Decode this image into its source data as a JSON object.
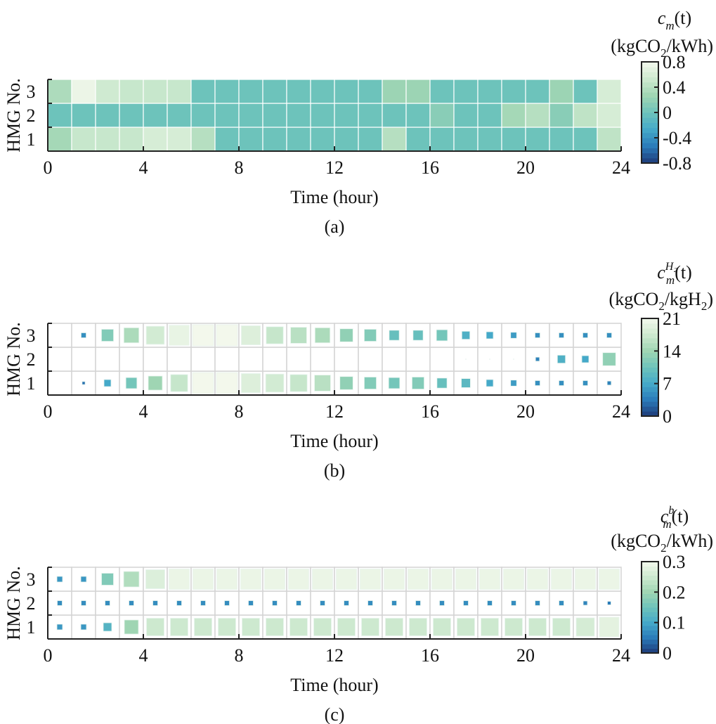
{
  "colormap": [
    "#1e3a78",
    "#2b7bb9",
    "#45a9c9",
    "#6dc3bb",
    "#9fd5b3",
    "#cde9cf",
    "#f3f8ec"
  ],
  "chart_data": [
    {
      "type": "heatmap",
      "panel_label": "(a)",
      "xlabel": "Time (hour)",
      "ylabel": "HMG No.",
      "xlim": [
        0,
        24
      ],
      "xticks": [
        "0",
        "4",
        "8",
        "12",
        "16",
        "20",
        "24"
      ],
      "yticks": [
        "1",
        "2",
        "3"
      ],
      "colorbar": {
        "title": {
          "base": "c",
          "sup": "",
          "sub": "m",
          "arg": "(t)"
        },
        "unit": {
          "pre": "(kgCO",
          "sub": "2",
          "post": "/kWh)"
        },
        "range": [
          -0.8,
          0.8
        ],
        "ticks": [
          "0.8",
          "0.4",
          "0",
          "-0.4",
          "-0.8"
        ]
      },
      "marker": "full-cell",
      "series": [
        {
          "name": "1",
          "values": [
            0.3,
            0.5,
            0.5,
            0.5,
            0.6,
            0.6,
            0.4,
            0,
            0,
            0,
            0,
            0,
            0,
            0,
            0.4,
            0,
            0,
            0,
            0,
            0,
            0,
            0,
            0,
            0.45
          ]
        },
        {
          "name": "2",
          "values": [
            0,
            0,
            0,
            0,
            0,
            0,
            0,
            0,
            0,
            0,
            0,
            0,
            0,
            0,
            0,
            0,
            0.15,
            0,
            0,
            0.3,
            0.4,
            0.15,
            0.45,
            0.6
          ]
        },
        {
          "name": "3",
          "values": [
            0.35,
            0.75,
            0.55,
            0.5,
            0.5,
            0.5,
            0,
            0,
            0,
            0,
            0,
            0,
            0,
            0,
            0.25,
            0.25,
            0,
            0,
            0,
            0,
            0,
            0.25,
            0,
            0.6
          ]
        }
      ]
    },
    {
      "type": "heatmap",
      "panel_label": "(b)",
      "xlabel": "Time (hour)",
      "ylabel": "HMG No.",
      "xlim": [
        0,
        24
      ],
      "xticks": [
        "0",
        "4",
        "8",
        "12",
        "16",
        "20",
        "24"
      ],
      "yticks": [
        "1",
        "2",
        "3"
      ],
      "colorbar": {
        "title": {
          "base": "c",
          "sup": "H₂",
          "sub": "m",
          "arg": "(t)"
        },
        "unit": {
          "pre": "(kgCO",
          "sub": "2",
          "post": "/kgH",
          "sub2": "2",
          "post2": ")"
        },
        "range": [
          0,
          21
        ],
        "ticks": [
          "21",
          "14",
          "7",
          "0"
        ]
      },
      "marker": "sized-square",
      "series": [
        {
          "name": "1",
          "values": [
            0,
            3,
            7,
            11,
            14,
            17,
            21,
            21,
            19,
            18,
            17,
            16,
            13,
            12,
            11,
            12,
            10,
            9,
            7,
            6,
            5,
            5,
            5,
            4
          ]
        },
        {
          "name": "2",
          "values": [
            0,
            0,
            0,
            0,
            0,
            0,
            0,
            0,
            0,
            0,
            0,
            0,
            0,
            0,
            0,
            0,
            0,
            0.5,
            0.5,
            0.5,
            4,
            8,
            7,
            13
          ]
        },
        {
          "name": "3",
          "values": [
            0,
            5,
            12,
            15,
            18,
            20,
            21,
            21,
            19,
            17,
            16,
            15,
            13,
            12,
            10,
            10,
            11,
            8,
            7,
            6,
            5,
            5,
            5,
            5
          ]
        }
      ]
    },
    {
      "type": "heatmap",
      "panel_label": "(c)",
      "xlabel": "Time (hour)",
      "ylabel": "HMG No.",
      "xlim": [
        0,
        24
      ],
      "xticks": [
        "0",
        "4",
        "8",
        "12",
        "16",
        "20",
        "24"
      ],
      "yticks": [
        "1",
        "2",
        "3"
      ],
      "colorbar": {
        "title": {
          "base": "c",
          "sup": "b",
          "sub": "m",
          "arg": "(t)"
        },
        "unit": {
          "pre": "(kgCO",
          "sub": "2",
          "post": "/kWh)"
        },
        "range": [
          0,
          0.3
        ],
        "ticks": [
          "0.3",
          "0.2",
          "0.1",
          "0"
        ]
      },
      "marker": "sized-square",
      "series": [
        {
          "name": "1",
          "values": [
            0.08,
            0.08,
            0.12,
            0.2,
            0.25,
            0.25,
            0.25,
            0.25,
            0.25,
            0.25,
            0.25,
            0.25,
            0.25,
            0.25,
            0.25,
            0.25,
            0.25,
            0.25,
            0.25,
            0.25,
            0.25,
            0.25,
            0.26,
            0.28
          ]
        },
        {
          "name": "2",
          "values": [
            0.07,
            0.07,
            0.07,
            0.07,
            0.07,
            0.07,
            0.07,
            0.07,
            0.07,
            0.07,
            0.07,
            0.07,
            0.07,
            0.07,
            0.07,
            0.07,
            0.07,
            0.07,
            0.07,
            0.07,
            0.07,
            0.07,
            0.06,
            0.05
          ]
        },
        {
          "name": "3",
          "values": [
            0.08,
            0.08,
            0.17,
            0.22,
            0.27,
            0.29,
            0.29,
            0.29,
            0.29,
            0.29,
            0.29,
            0.29,
            0.29,
            0.29,
            0.29,
            0.29,
            0.29,
            0.29,
            0.29,
            0.29,
            0.29,
            0.29,
            0.29,
            0.29
          ]
        }
      ]
    }
  ]
}
